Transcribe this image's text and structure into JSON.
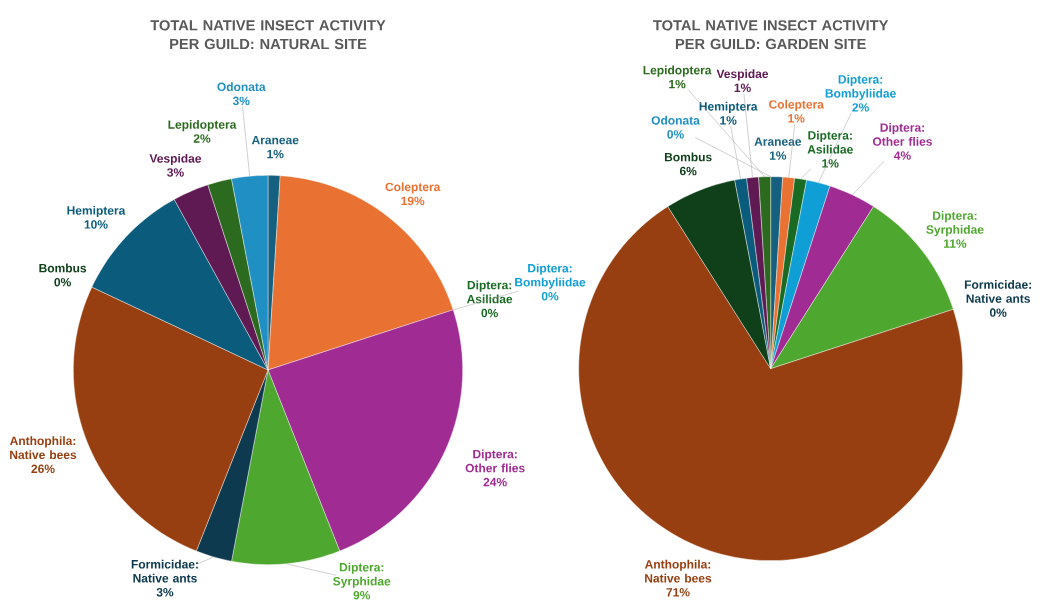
{
  "chart_data": [
    {
      "type": "pie",
      "title": "TOTAL NATIVE INSECT ACTIVITY PER GUILD: NATURAL SITE",
      "categories": [
        "Araneae",
        "Coleptera",
        "Diptera: Asilidae",
        "Diptera: Bombyliidae",
        "Diptera: Other flies",
        "Diptera: Syrphidae",
        "Formicidae: Native ants",
        "Anthophila: Native bees",
        "Bombus",
        "Hemiptera",
        "Vespidae",
        "Lepidoptera",
        "Odonata"
      ],
      "values": [
        1,
        19,
        0,
        0,
        24,
        9,
        3,
        26,
        0,
        10,
        3,
        2,
        3
      ],
      "value_labels": [
        "1%",
        "19%",
        "0%",
        "0%",
        "24%",
        "9%",
        "3%",
        "26%",
        "0%",
        "10%",
        "3%",
        "2%",
        "3%"
      ],
      "colors": [
        "#16607f",
        "#e97132",
        "#196b24",
        "#0f9ed5",
        "#a02b93",
        "#4ea72e",
        "#0e3a4f",
        "#983f11",
        "#10401a",
        "#0b5c7c",
        "#5f1a54",
        "#2c6b1f",
        "#1f8fc4"
      ]
    },
    {
      "type": "pie",
      "title": "TOTAL NATIVE INSECT ACTIVITY PER GUILD: GARDEN SITE",
      "categories": [
        "Araneae",
        "Coleptera",
        "Diptera: Asilidae",
        "Diptera: Bombyliidae",
        "Diptera: Other flies",
        "Diptera: Syrphidae",
        "Formicidae: Native ants",
        "Anthophila: Native bees",
        "Bombus",
        "Hemiptera",
        "Vespidae",
        "Lepidoptera",
        "Odonata"
      ],
      "values": [
        1,
        1,
        1,
        2,
        4,
        11,
        0,
        71,
        6,
        1,
        1,
        1,
        0
      ],
      "value_labels": [
        "1%",
        "1%",
        "1%",
        "2%",
        "4%",
        "11%",
        "0%",
        "71%",
        "6%",
        "1%",
        "1%",
        "1%",
        "0%"
      ],
      "colors": [
        "#16607f",
        "#e97132",
        "#196b24",
        "#0f9ed5",
        "#a02b93",
        "#4ea72e",
        "#0e3a4f",
        "#983f11",
        "#10401a",
        "#0b5c7c",
        "#5f1a54",
        "#2c6b1f",
        "#1f8fc4"
      ]
    }
  ]
}
